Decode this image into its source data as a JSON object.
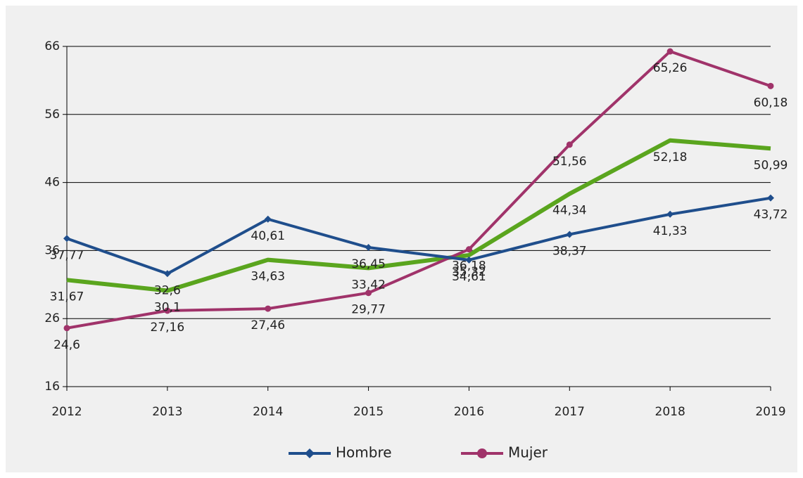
{
  "chart_data": {
    "type": "line",
    "categories": [
      "2012",
      "2013",
      "2014",
      "2015",
      "2016",
      "2017",
      "2018",
      "2019"
    ],
    "series": [
      {
        "name": "Hombre",
        "color": "#1f4e8c",
        "marker": "diamond",
        "values": [
          37.77,
          32.6,
          40.61,
          36.45,
          34.61,
          38.37,
          41.33,
          43.72
        ],
        "value_labels": [
          "37,77",
          "32,6",
          "40,61",
          "36,45",
          "34,61",
          "38,37",
          "41,33",
          "43,72"
        ]
      },
      {
        "name": "Mujer",
        "color": "#a0336a",
        "marker": "circle",
        "values": [
          24.6,
          27.16,
          27.46,
          29.77,
          36.18,
          51.56,
          65.26,
          60.18
        ],
        "value_labels": [
          "24,6",
          "27,16",
          "27,46",
          "29,77",
          "36,18",
          "51,56",
          "65,26",
          "60,18"
        ]
      },
      {
        "color": "#5aa51e",
        "marker": "none",
        "values": [
          31.67,
          30.1,
          34.63,
          33.42,
          35.32,
          44.34,
          52.18,
          50.99
        ],
        "value_labels": [
          "31,67",
          "30,1",
          "34,63",
          "33,42",
          "35,32",
          "44,34",
          "52,18",
          "50,99"
        ]
      }
    ],
    "ylim": [
      16,
      66
    ],
    "yticks": [
      16,
      26,
      36,
      46,
      56,
      66
    ],
    "grid": true,
    "legend": "bottom"
  }
}
